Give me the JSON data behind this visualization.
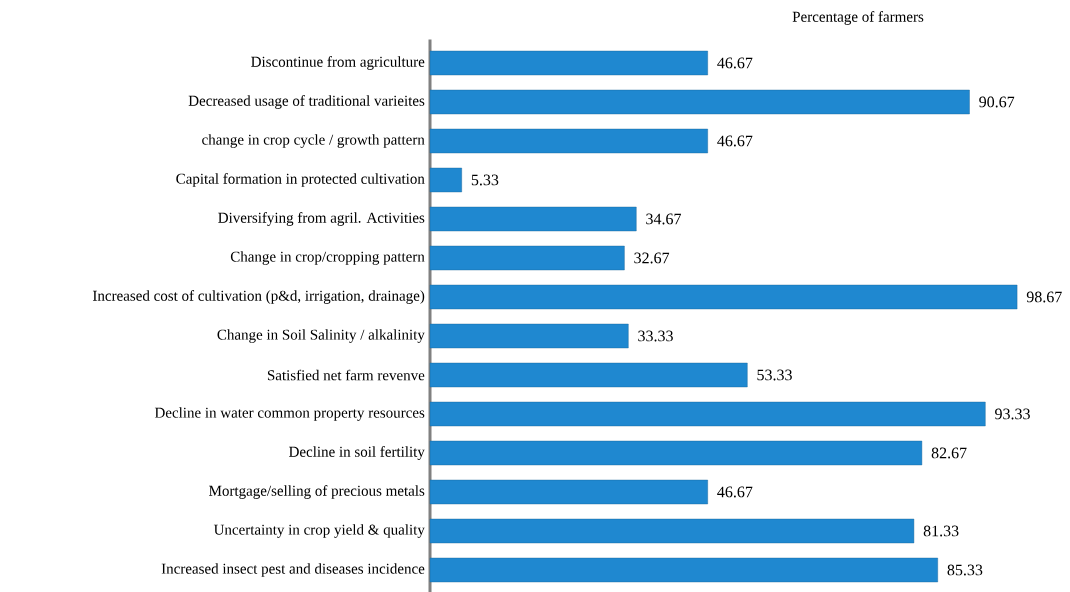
{
  "chart_data": {
    "type": "bar",
    "orientation": "horizontal",
    "title": "Percentage of farmers",
    "categories": [
      "Discontinue from agriculture",
      "Decreased usage of traditional varieites",
      "change in crop cycle / growth pattern",
      "Capital formation in protected cultivation",
      "Diversifying from agril. Activities",
      "Change in crop/cropping pattern",
      "Increased cost of cultivation (p&d, irrigation, drainage)",
      "Change in Soil Salinity / alkalinity",
      "Satisfied net farm revenve",
      "Decline in water common property resources",
      "Decline in soil fertility",
      "Mortgage/selling of precious metals",
      "Uncertainty in crop yield & quality",
      "Increased insect pest and diseases incidence"
    ],
    "values": [
      46.67,
      90.67,
      46.67,
      5.33,
      34.67,
      32.67,
      98.67,
      33.33,
      53.33,
      93.33,
      82.67,
      46.67,
      81.33,
      85.33
    ],
    "color": "#1f88d0",
    "data_labels": true
  }
}
